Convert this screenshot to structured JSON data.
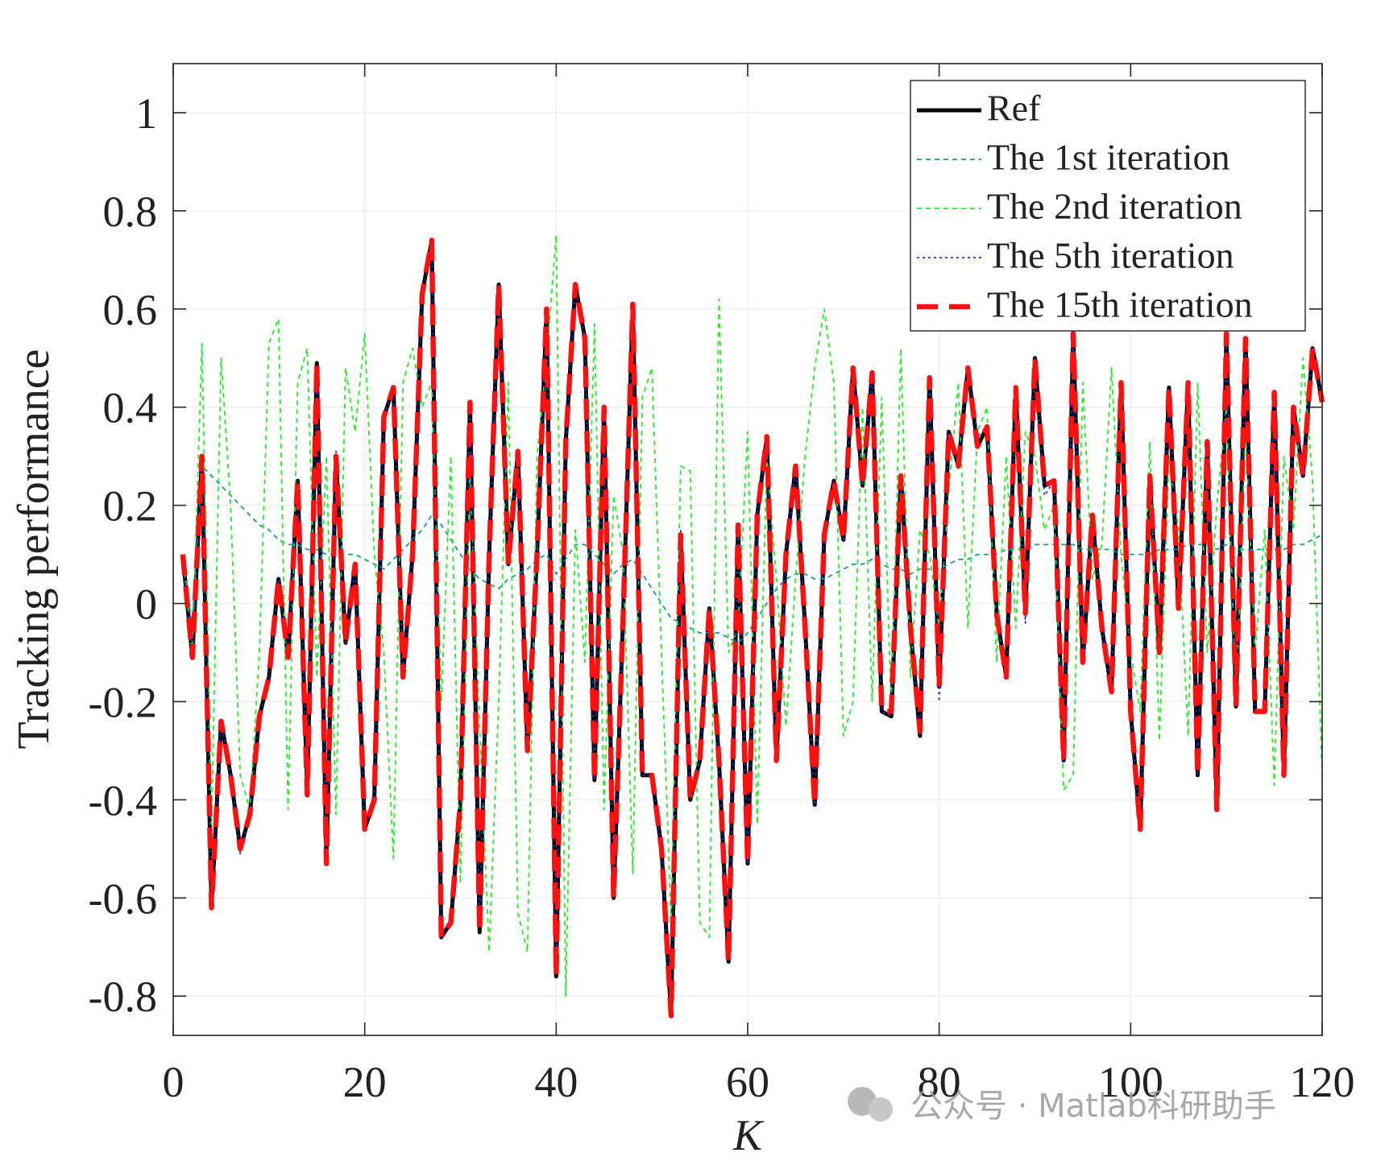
{
  "chart_data": {
    "type": "line",
    "ylabel": "Tracking performance",
    "xlabel": "K",
    "watermark": "公众号 · Matlab科研助手",
    "xlim": [
      0,
      120
    ],
    "ylim": [
      -0.88,
      1.1
    ],
    "xticks": [
      0,
      20,
      40,
      60,
      80,
      100,
      120
    ],
    "yticks": [
      -0.8,
      -0.6,
      -0.4,
      -0.2,
      0,
      0.2,
      0.4,
      0.6,
      0.8,
      1
    ],
    "grid": true,
    "legend": "upper right",
    "x": [
      1,
      2,
      3,
      4,
      5,
      6,
      7,
      8,
      9,
      10,
      11,
      12,
      13,
      14,
      15,
      16,
      17,
      18,
      19,
      20,
      21,
      22,
      23,
      24,
      25,
      26,
      27,
      28,
      29,
      30,
      31,
      32,
      33,
      34,
      35,
      36,
      37,
      38,
      39,
      40,
      41,
      42,
      43,
      44,
      45,
      46,
      47,
      48,
      49,
      50,
      51,
      52,
      53,
      54,
      55,
      56,
      57,
      58,
      59,
      60,
      61,
      62,
      63,
      64,
      65,
      66,
      67,
      68,
      69,
      70,
      71,
      72,
      73,
      74,
      75,
      76,
      77,
      78,
      79,
      80,
      81,
      82,
      83,
      84,
      85,
      86,
      87,
      88,
      89,
      90,
      91,
      92,
      93,
      94,
      95,
      96,
      97,
      98,
      99,
      100,
      101,
      102,
      103,
      104,
      105,
      106,
      107,
      108,
      109,
      110,
      111,
      112,
      113,
      114,
      115,
      116,
      117,
      118,
      119,
      120
    ],
    "series": [
      {
        "name": "Ref",
        "color": "#000000",
        "linestyle": "solid",
        "values": [
          0.1,
          -0.11,
          0.3,
          -0.62,
          -0.24,
          -0.35,
          -0.5,
          -0.43,
          -0.23,
          -0.15,
          0.05,
          -0.11,
          0.25,
          -0.39,
          0.49,
          -0.53,
          0.3,
          -0.08,
          0.08,
          -0.46,
          -0.4,
          0.38,
          0.44,
          -0.15,
          0.1,
          0.63,
          0.74,
          -0.68,
          -0.65,
          -0.4,
          0.41,
          -0.67,
          0.1,
          0.65,
          0.08,
          0.31,
          -0.3,
          0.1,
          0.6,
          -0.76,
          0.33,
          0.65,
          0.54,
          -0.36,
          0.4,
          -0.6,
          -0.02,
          0.61,
          -0.35,
          -0.35,
          -0.5,
          -0.84,
          0.14,
          -0.4,
          -0.32,
          -0.01,
          -0.32,
          -0.73,
          0.16,
          -0.53,
          0.18,
          0.34,
          -0.32,
          0.1,
          0.28,
          -0.05,
          -0.41,
          0.14,
          0.25,
          0.13,
          0.48,
          0.24,
          0.47,
          -0.22,
          -0.23,
          0.26,
          -0.05,
          -0.27,
          0.46,
          -0.17,
          0.35,
          0.28,
          0.48,
          0.32,
          0.36,
          -0.02,
          -0.15,
          0.44,
          -0.02,
          0.5,
          0.24,
          0.25,
          -0.32,
          0.55,
          -0.12,
          0.18,
          -0.05,
          -0.18,
          0.45,
          -0.22,
          -0.46,
          0.26,
          -0.1,
          0.44,
          -0.01,
          0.45,
          -0.35,
          0.33,
          -0.42,
          0.55,
          -0.21,
          0.54,
          -0.22,
          -0.22,
          0.43,
          -0.35,
          0.4,
          0.26,
          0.52,
          0.41
        ]
      },
      {
        "name": "The 1st iteration",
        "color": "#1a9a8c",
        "linestyle": "dashed",
        "values": [
          0.1,
          -0.05,
          0.28,
          0.26,
          0.24,
          0.22,
          0.2,
          0.18,
          0.16,
          0.15,
          0.13,
          0.12,
          0.12,
          0.11,
          0.11,
          0.1,
          0.1,
          0.1,
          0.1,
          0.09,
          0.08,
          0.07,
          0.09,
          0.11,
          0.13,
          0.15,
          0.18,
          0.16,
          0.13,
          0.1,
          0.07,
          0.05,
          0.04,
          0.03,
          0.05,
          0.06,
          0.07,
          0.09,
          0.1,
          0.06,
          0.09,
          0.12,
          0.12,
          0.1,
          0.08,
          0.06,
          0.08,
          0.09,
          0.06,
          0.03,
          0,
          -0.03,
          -0.04,
          -0.05,
          -0.06,
          -0.06,
          -0.06,
          -0.07,
          -0.08,
          -0.06,
          -0.03,
          0,
          0.03,
          0.05,
          0.06,
          0.06,
          0.05,
          0.05,
          0.06,
          0.07,
          0.08,
          0.08,
          0.09,
          0.08,
          0.07,
          0.07,
          0.06,
          0.07,
          0.07,
          0.07,
          0.08,
          0.09,
          0.09,
          0.1,
          0.1,
          0.1,
          0.11,
          0.11,
          0.11,
          0.12,
          0.12,
          0.12,
          0.12,
          0.12,
          0.11,
          0.11,
          0.11,
          0.11,
          0.1,
          0.1,
          0.1,
          0.1,
          0.11,
          0.11,
          0.11,
          0.12,
          0.12,
          0.12,
          0.11,
          0.12,
          0.11,
          0.11,
          0.11,
          0.11,
          0.11,
          0.11,
          0.12,
          0.12,
          0.13,
          0.14
        ]
      },
      {
        "name": "The 2nd iteration",
        "color": "#22ee22",
        "linestyle": "dashed",
        "values": [
          0.1,
          -0.1,
          0.53,
          -0.45,
          0.5,
          0.2,
          -0.35,
          -0.42,
          -0.1,
          0.53,
          0.58,
          -0.42,
          0.45,
          0.52,
          -0.15,
          0.3,
          -0.43,
          0.48,
          0.35,
          0.55,
          0.1,
          -0.1,
          -0.52,
          0.45,
          0.52,
          0.4,
          0.45,
          -0.2,
          0.3,
          -0.57,
          0.27,
          -0.25,
          -0.71,
          -0.2,
          0.45,
          -0.63,
          -0.71,
          0.3,
          0.5,
          0.75,
          -0.8,
          0.15,
          -0.12,
          0.57,
          -0.42,
          0.22,
          0.1,
          -0.55,
          0.42,
          0.48,
          -0.1,
          -0.65,
          0.28,
          0.27,
          -0.65,
          -0.68,
          0.62,
          -0.1,
          -0.05,
          0.35,
          -0.45,
          0.3,
          0.05,
          -0.25,
          0.05,
          0.3,
          0.48,
          0.6,
          0.45,
          -0.27,
          -0.2,
          0.4,
          -0.2,
          0.42,
          -0.22,
          0.52,
          -0.15,
          0.15,
          0.1,
          -0.05,
          0.23,
          0.45,
          -0.05,
          0.35,
          0.4,
          -0.12,
          0.3,
          -0.05,
          0.35,
          0.3,
          0.15,
          0.2,
          -0.38,
          -0.35,
          0.45,
          0.05,
          0.12,
          0.48,
          0.1,
          -0.1,
          -0.22,
          0.33,
          -0.28,
          0.3,
          0.15,
          -0.27,
          0.45,
          -0.1,
          0.2,
          0.4,
          -0.2,
          0.35,
          -0.1,
          0.15,
          -0.37,
          0.3,
          0.15,
          0.5,
          0.25,
          -0.35
        ]
      },
      {
        "name": "The 5th iteration",
        "color": "#1f2fe0",
        "linestyle": "dotted",
        "values": [
          0.1,
          -0.11,
          0.3,
          -0.61,
          -0.24,
          -0.35,
          -0.51,
          -0.43,
          -0.23,
          -0.15,
          0.05,
          -0.11,
          0.25,
          -0.39,
          0.48,
          -0.52,
          0.31,
          -0.08,
          0.08,
          -0.46,
          -0.4,
          0.38,
          0.44,
          -0.15,
          0.1,
          0.63,
          0.73,
          -0.67,
          -0.65,
          -0.4,
          0.41,
          -0.66,
          0.1,
          0.65,
          0.08,
          0.31,
          -0.3,
          0.1,
          0.6,
          -0.75,
          0.33,
          0.65,
          0.54,
          -0.36,
          0.4,
          -0.6,
          -0.02,
          0.61,
          -0.35,
          -0.35,
          -0.5,
          -0.83,
          0.15,
          -0.4,
          -0.32,
          -0.01,
          -0.32,
          -0.72,
          0.16,
          -0.53,
          0.18,
          0.34,
          -0.32,
          0.1,
          0.28,
          -0.05,
          -0.41,
          0.14,
          0.25,
          0.13,
          0.48,
          0.24,
          0.47,
          -0.22,
          -0.23,
          0.26,
          -0.05,
          -0.27,
          0.46,
          -0.2,
          0.35,
          0.28,
          0.48,
          0.34,
          0.36,
          -0.02,
          -0.15,
          0.44,
          -0.04,
          0.5,
          0.22,
          0.25,
          -0.32,
          0.55,
          -0.12,
          0.18,
          -0.05,
          -0.18,
          0.45,
          -0.22,
          -0.46,
          0.26,
          -0.1,
          0.44,
          -0.01,
          0.45,
          -0.35,
          0.33,
          -0.42,
          0.55,
          -0.21,
          0.54,
          -0.22,
          -0.22,
          0.43,
          -0.35,
          0.4,
          0.26,
          0.52,
          0.41
        ]
      },
      {
        "name": "The 15th iteration",
        "color": "#ff1010",
        "linestyle": "dashed-thick",
        "values": [
          0.1,
          -0.11,
          0.3,
          -0.62,
          -0.24,
          -0.35,
          -0.5,
          -0.43,
          -0.23,
          -0.15,
          0.05,
          -0.11,
          0.25,
          -0.39,
          0.49,
          -0.53,
          0.3,
          -0.08,
          0.08,
          -0.46,
          -0.4,
          0.38,
          0.44,
          -0.15,
          0.1,
          0.63,
          0.74,
          -0.68,
          -0.65,
          -0.4,
          0.41,
          -0.67,
          0.1,
          0.65,
          0.08,
          0.31,
          -0.3,
          0.1,
          0.6,
          -0.76,
          0.33,
          0.65,
          0.54,
          -0.36,
          0.4,
          -0.6,
          -0.02,
          0.61,
          -0.35,
          -0.35,
          -0.5,
          -0.84,
          0.14,
          -0.4,
          -0.32,
          -0.01,
          -0.32,
          -0.73,
          0.16,
          -0.53,
          0.18,
          0.34,
          -0.32,
          0.1,
          0.28,
          -0.05,
          -0.41,
          0.14,
          0.25,
          0.13,
          0.48,
          0.24,
          0.47,
          -0.22,
          -0.22,
          0.26,
          -0.05,
          -0.26,
          0.46,
          -0.17,
          0.35,
          0.28,
          0.48,
          0.32,
          0.36,
          -0.02,
          -0.15,
          0.44,
          -0.02,
          0.5,
          0.24,
          0.25,
          -0.32,
          0.55,
          -0.12,
          0.18,
          -0.05,
          -0.18,
          0.45,
          -0.22,
          -0.46,
          0.26,
          -0.1,
          0.44,
          -0.01,
          0.45,
          -0.35,
          0.33,
          -0.42,
          0.55,
          -0.21,
          0.54,
          -0.22,
          -0.22,
          0.43,
          -0.35,
          0.4,
          0.26,
          0.52,
          0.41
        ]
      }
    ]
  }
}
